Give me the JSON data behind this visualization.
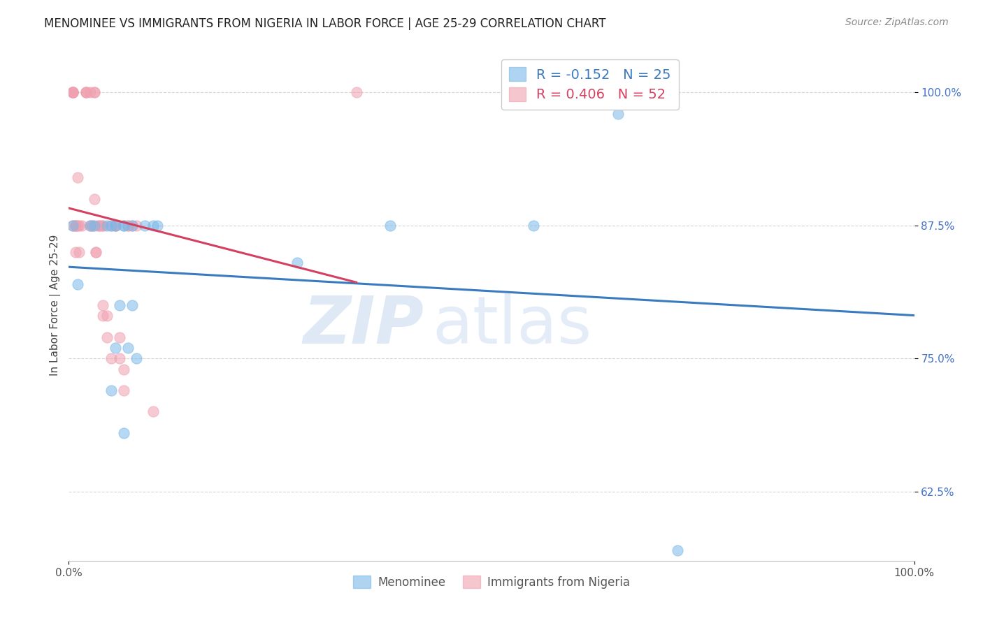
{
  "title": "MENOMINEE VS IMMIGRANTS FROM NIGERIA IN LABOR FORCE | AGE 25-29 CORRELATION CHART",
  "source": "Source: ZipAtlas.com",
  "ylabel": "In Labor Force | Age 25-29",
  "xlim": [
    0.0,
    1.0
  ],
  "ylim": [
    0.56,
    1.04
  ],
  "yticks": [
    0.625,
    0.75,
    0.875,
    1.0
  ],
  "ytick_labels": [
    "62.5%",
    "75.0%",
    "87.5%",
    "100.0%"
  ],
  "xticks": [
    0.0,
    1.0
  ],
  "xtick_labels": [
    "0.0%",
    "100.0%"
  ],
  "watermark_zip": "ZIP",
  "watermark_atlas": "atlas",
  "menominee_x": [
    0.005,
    0.01,
    0.025,
    0.03,
    0.045,
    0.05,
    0.05,
    0.055,
    0.055,
    0.06,
    0.065,
    0.065,
    0.065,
    0.07,
    0.075,
    0.075,
    0.08,
    0.09,
    0.1,
    0.105,
    0.27,
    0.38,
    0.55,
    0.65,
    0.72
  ],
  "menominee_y": [
    0.875,
    0.82,
    0.875,
    0.875,
    0.875,
    0.875,
    0.72,
    0.76,
    0.875,
    0.8,
    0.875,
    0.875,
    0.68,
    0.76,
    0.875,
    0.8,
    0.75,
    0.875,
    0.875,
    0.875,
    0.84,
    0.875,
    0.875,
    0.98,
    0.57
  ],
  "nigeria_x": [
    0.005,
    0.005,
    0.005,
    0.005,
    0.005,
    0.005,
    0.005,
    0.008,
    0.008,
    0.008,
    0.008,
    0.01,
    0.01,
    0.012,
    0.012,
    0.015,
    0.02,
    0.02,
    0.02,
    0.025,
    0.025,
    0.028,
    0.028,
    0.03,
    0.03,
    0.03,
    0.032,
    0.032,
    0.035,
    0.035,
    0.038,
    0.04,
    0.04,
    0.04,
    0.04,
    0.045,
    0.045,
    0.05,
    0.05,
    0.055,
    0.055,
    0.055,
    0.06,
    0.06,
    0.065,
    0.065,
    0.07,
    0.07,
    0.075,
    0.08,
    0.1,
    0.34
  ],
  "nigeria_y": [
    1.0,
    1.0,
    1.0,
    1.0,
    1.0,
    1.0,
    0.875,
    0.875,
    0.875,
    0.875,
    0.85,
    0.92,
    0.875,
    0.875,
    0.85,
    0.875,
    1.0,
    1.0,
    1.0,
    1.0,
    0.875,
    0.875,
    0.875,
    1.0,
    1.0,
    0.9,
    0.85,
    0.85,
    0.875,
    0.875,
    0.875,
    0.875,
    0.875,
    0.8,
    0.79,
    0.79,
    0.77,
    0.875,
    0.75,
    0.875,
    0.875,
    0.875,
    0.75,
    0.77,
    0.74,
    0.72,
    0.875,
    0.875,
    0.875,
    0.875,
    0.7,
    1.0
  ],
  "menominee_color": "#7ab8e8",
  "nigeria_color": "#f0a0b0",
  "dot_size": 120,
  "dot_alpha": 0.55,
  "dot_edge_alpha": 0.8,
  "trend_menominee_color": "#3a7abf",
  "trend_nigeria_color": "#d44060",
  "trend_linewidth": 2.2,
  "grid_color": "#bbbbbb",
  "grid_linestyle": "--",
  "grid_alpha": 0.6,
  "background_color": "#ffffff",
  "title_fontsize": 12,
  "source_fontsize": 10,
  "axis_label_fontsize": 11,
  "tick_fontsize": 11,
  "ytick_color": "#4472c4",
  "xtick_color": "#555555",
  "legend_r1": "R = -0.152",
  "legend_n1": "N = 25",
  "legend_r2": "R = 0.406",
  "legend_n2": "N = 52",
  "legend_r_color1": "#3a7abf",
  "legend_r_color2": "#d44060",
  "legend_n_color": "#4472c4",
  "bottom_legend_label1": "Menominee",
  "bottom_legend_label2": "Immigrants from Nigeria"
}
